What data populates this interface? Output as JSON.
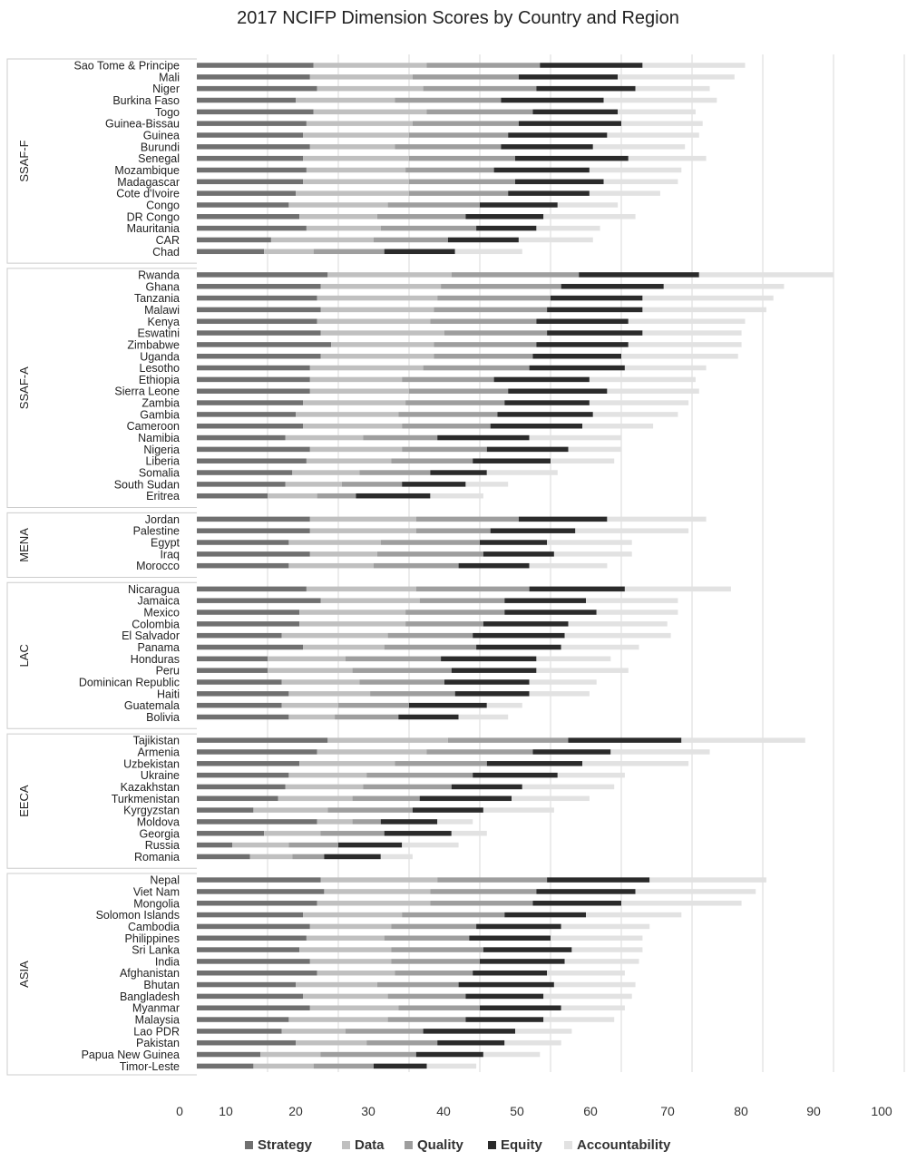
{
  "chart_data": {
    "type": "bar",
    "orientation": "horizontal",
    "stacked": true,
    "title": "2017 NCIFP Dimension Scores by Country and Region",
    "xlim": [
      0,
      100
    ],
    "xticks": [
      0,
      10,
      20,
      30,
      40,
      50,
      60,
      70,
      80,
      90,
      100
    ],
    "grid": true,
    "legend_position": "bottom",
    "series": [
      {
        "name": "Strategy",
        "color": "#707070"
      },
      {
        "name": "Data",
        "color": "#c0c0c0"
      },
      {
        "name": "Quality",
        "color": "#9e9e9e"
      },
      {
        "name": "Equity",
        "color": "#2b2b2b"
      },
      {
        "name": "Accountability",
        "color": "#e2e2e2"
      }
    ],
    "groups": [
      {
        "region": "SSAF-F",
        "countries": [
          {
            "name": "Sao Tome & Principe",
            "values": [
              16.5,
              16,
              16,
              14.5,
              14.5
            ]
          },
          {
            "name": "Mali",
            "values": [
              16,
              14.5,
              15,
              14,
              16.5
            ]
          },
          {
            "name": "Niger",
            "values": [
              17,
              15,
              16,
              14,
              10.5
            ]
          },
          {
            "name": "Burkina Faso",
            "values": [
              14,
              14,
              15,
              14.5,
              16
            ]
          },
          {
            "name": "Togo",
            "values": [
              16.5,
              16,
              15,
              12,
              11
            ]
          },
          {
            "name": "Guinea-Bissau",
            "values": [
              15.5,
              15,
              15,
              14.5,
              11.5
            ]
          },
          {
            "name": "Guinea",
            "values": [
              15,
              15,
              14,
              14,
              13
            ]
          },
          {
            "name": "Burundi",
            "values": [
              16,
              12,
              15,
              13,
              13
            ]
          },
          {
            "name": "Senegal",
            "values": [
              15,
              15,
              15,
              16,
              11
            ]
          },
          {
            "name": "Mozambique",
            "values": [
              15.5,
              14,
              12.5,
              13.5,
              13
            ]
          },
          {
            "name": "Madagascar",
            "values": [
              15,
              15,
              15,
              12.5,
              10.5
            ]
          },
          {
            "name": "Cote d'Ivoire",
            "values": [
              14,
              16,
              14,
              11.5,
              10
            ]
          },
          {
            "name": "Congo",
            "values": [
              13,
              14,
              13,
              11,
              8.5
            ]
          },
          {
            "name": "DR Congo",
            "values": [
              14.5,
              11,
              12.5,
              11,
              13
            ]
          },
          {
            "name": "Mauritania",
            "values": [
              15.5,
              10.5,
              13.5,
              8.5,
              9
            ]
          },
          {
            "name": "CAR",
            "values": [
              10.5,
              14.5,
              10.5,
              10,
              10.5
            ]
          },
          {
            "name": "Chad",
            "values": [
              9.5,
              7,
              10,
              10,
              9.5
            ]
          }
        ]
      },
      {
        "region": "SSAF-A",
        "countries": [
          {
            "name": "Rwanda",
            "values": [
              18.5,
              17.5,
              18,
              17,
              19
            ]
          },
          {
            "name": "Ghana",
            "values": [
              17.5,
              17,
              17,
              14.5,
              17
            ]
          },
          {
            "name": "Tanzania",
            "values": [
              17,
              17,
              16,
              13,
              18.5
            ]
          },
          {
            "name": "Malawi",
            "values": [
              17.5,
              16,
              16,
              13.5,
              17.5
            ]
          },
          {
            "name": "Kenya",
            "values": [
              17,
              16,
              15,
              13,
              16.5
            ]
          },
          {
            "name": "Eswatini",
            "values": [
              17.5,
              17.5,
              14.5,
              13.5,
              14
            ]
          },
          {
            "name": "Zimbabwe",
            "values": [
              19,
              14.5,
              14.5,
              13,
              16
            ]
          },
          {
            "name": "Uganda",
            "values": [
              17.5,
              16,
              14,
              12.5,
              16.5
            ]
          },
          {
            "name": "Lesotho",
            "values": [
              16,
              16,
              15,
              13.5,
              11.5
            ]
          },
          {
            "name": "Ethiopia",
            "values": [
              16,
              13,
              13,
              13.5,
              15
            ]
          },
          {
            "name": "Sierra Leone",
            "values": [
              16,
              14,
              14,
              14,
              13
            ]
          },
          {
            "name": "Zambia",
            "values": [
              15,
              14.5,
              14,
              12,
              14
            ]
          },
          {
            "name": "Gambia",
            "values": [
              14,
              14.5,
              14,
              13.5,
              12
            ]
          },
          {
            "name": "Cameroon",
            "values": [
              15,
              14,
              12.5,
              13,
              10
            ]
          },
          {
            "name": "Namibia",
            "values": [
              12.5,
              11,
              10.5,
              13,
              13
            ]
          },
          {
            "name": "Nigeria",
            "values": [
              16,
              13,
              12,
              11.5,
              7.5
            ]
          },
          {
            "name": "Liberia",
            "values": [
              15.5,
              12,
              11.5,
              11,
              9
            ]
          },
          {
            "name": "Somalia",
            "values": [
              13.5,
              9.5,
              10,
              8,
              10
            ]
          },
          {
            "name": "South Sudan",
            "values": [
              12.5,
              8,
              8.5,
              9,
              6
            ]
          },
          {
            "name": "Eritrea",
            "values": [
              10,
              7,
              5.5,
              10.5,
              7.5
            ]
          }
        ]
      },
      {
        "region": "MENA",
        "countries": [
          {
            "name": "Jordan",
            "values": [
              16,
              15,
              14.5,
              12.5,
              14
            ]
          },
          {
            "name": "Palestine",
            "values": [
              16,
              15,
              10.5,
              12,
              16
            ]
          },
          {
            "name": "Egypt",
            "values": [
              13,
              13,
              14,
              9.5,
              12
            ]
          },
          {
            "name": "Iraq",
            "values": [
              16,
              9.5,
              15,
              10,
              11
            ]
          },
          {
            "name": "Morocco",
            "values": [
              13,
              12,
              12,
              10,
              11
            ]
          }
        ]
      },
      {
        "region": "LAC",
        "countries": [
          {
            "name": "Nicaragua",
            "values": [
              15.5,
              15.5,
              16,
              13.5,
              15
            ]
          },
          {
            "name": "Jamaica",
            "values": [
              17.5,
              14,
              12,
              11.5,
              13
            ]
          },
          {
            "name": "Mexico",
            "values": [
              14.5,
              15,
              14,
              13,
              11.5
            ]
          },
          {
            "name": "Colombia",
            "values": [
              14.5,
              15,
              11,
              12,
              14
            ]
          },
          {
            "name": "El Salvador",
            "values": [
              12,
              15,
              12,
              13,
              15
            ]
          },
          {
            "name": "Panama",
            "values": [
              15,
              11.5,
              13,
              12,
              11
            ]
          },
          {
            "name": "Honduras",
            "values": [
              10,
              11,
              13.5,
              13.5,
              10.5
            ]
          },
          {
            "name": "Peru",
            "values": [
              10,
              12,
              14,
              12,
              13
            ]
          },
          {
            "name": "Dominican Republic",
            "values": [
              12,
              11,
              12,
              12,
              9.5
            ]
          },
          {
            "name": "Haiti",
            "values": [
              13,
              11.5,
              12,
              10.5,
              8.5
            ]
          },
          {
            "name": "Guatemala",
            "values": [
              12,
              8,
              10,
              11,
              5
            ]
          },
          {
            "name": "Bolivia",
            "values": [
              13,
              6.5,
              9,
              8.5,
              7
            ]
          }
        ]
      },
      {
        "region": "EECA",
        "countries": [
          {
            "name": "Tajikistan",
            "values": [
              18.5,
              17,
              17,
              16,
              17.5
            ]
          },
          {
            "name": "Armenia",
            "values": [
              17,
              15.5,
              15,
              11,
              14
            ]
          },
          {
            "name": "Uzbekistan",
            "values": [
              14.5,
              13.5,
              13,
              13.5,
              15
            ]
          },
          {
            "name": "Ukraine",
            "values": [
              13,
              11,
              15,
              12,
              9.5
            ]
          },
          {
            "name": "Kazakhstan",
            "values": [
              12.5,
              11,
              12.5,
              10,
              13
            ]
          },
          {
            "name": "Turkmenistan",
            "values": [
              11.5,
              10.5,
              9.5,
              13,
              11
            ]
          },
          {
            "name": "Kyrgyzstan",
            "values": [
              8,
              10.5,
              12,
              10,
              10
            ]
          },
          {
            "name": "Moldova",
            "values": [
              17,
              5,
              4,
              8,
              5
            ]
          },
          {
            "name": "Georgia",
            "values": [
              9.5,
              8,
              9,
              9.5,
              5
            ]
          },
          {
            "name": "Russia",
            "values": [
              5,
              8,
              7,
              9,
              8
            ]
          },
          {
            "name": "Romania",
            "values": [
              7.5,
              6,
              4.5,
              8,
              4.5
            ]
          }
        ]
      },
      {
        "region": "ASIA",
        "countries": [
          {
            "name": "Nepal",
            "values": [
              17.5,
              16.5,
              15.5,
              14.5,
              16.5
            ]
          },
          {
            "name": "Viet Nam",
            "values": [
              18,
              15,
              15,
              14,
              17
            ]
          },
          {
            "name": "Mongolia",
            "values": [
              17,
              16,
              14.5,
              12.5,
              17
            ]
          },
          {
            "name": "Solomon Islands",
            "values": [
              15,
              14,
              14.5,
              11.5,
              13.5
            ]
          },
          {
            "name": "Cambodia",
            "values": [
              16,
              11.5,
              12,
              12,
              12.5
            ]
          },
          {
            "name": "Philippines",
            "values": [
              15.5,
              11,
              12,
              11.5,
              13
            ]
          },
          {
            "name": "Sri Lanka",
            "values": [
              14.5,
              13,
              13,
              12.5,
              10
            ]
          },
          {
            "name": "India",
            "values": [
              16,
              11.5,
              12.5,
              12,
              10.5
            ]
          },
          {
            "name": "Afghanistan",
            "values": [
              17,
              11,
              11,
              10.5,
              11
            ]
          },
          {
            "name": "Bhutan",
            "values": [
              14,
              11.5,
              11.5,
              13.5,
              11.5
            ]
          },
          {
            "name": "Bangladesh",
            "values": [
              15,
              12,
              11,
              11,
              12.5
            ]
          },
          {
            "name": "Myanmar",
            "values": [
              16,
              12.5,
              11.5,
              11.5,
              9
            ]
          },
          {
            "name": "Malaysia",
            "values": [
              13,
              14,
              11,
              11,
              10
            ]
          },
          {
            "name": "Lao PDR",
            "values": [
              12,
              9,
              11,
              13,
              8
            ]
          },
          {
            "name": "Pakistan",
            "values": [
              14,
              10,
              10,
              9.5,
              8
            ]
          },
          {
            "name": "Papua New Guinea",
            "values": [
              9,
              8.5,
              13.5,
              9.5,
              8
            ]
          },
          {
            "name": "Timor-Leste",
            "values": [
              8,
              8.5,
              8.5,
              7.5,
              7
            ]
          }
        ]
      }
    ]
  }
}
